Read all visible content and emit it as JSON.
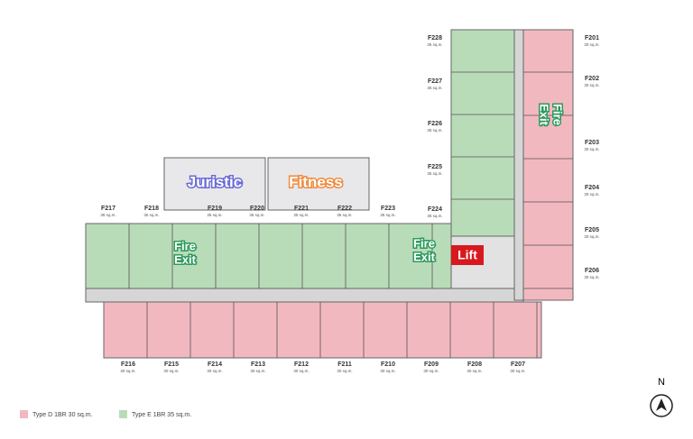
{
  "units": [
    {
      "label": "F201",
      "size": "30 sq.m."
    },
    {
      "label": "F202",
      "size": "30 sq.m."
    },
    {
      "label": "F203",
      "size": "30 sq.m."
    },
    {
      "label": "F204",
      "size": "30 sq.m."
    },
    {
      "label": "F205",
      "size": "30 sq.m."
    },
    {
      "label": "F206",
      "size": "30 sq.m."
    },
    {
      "label": "F207",
      "size": "30 sq.m."
    },
    {
      "label": "F208",
      "size": "30 sq.m."
    },
    {
      "label": "F209",
      "size": "30 sq.m."
    },
    {
      "label": "F210",
      "size": "30 sq.m."
    },
    {
      "label": "F211",
      "size": "30 sq.m."
    },
    {
      "label": "F212",
      "size": "30 sq.m."
    },
    {
      "label": "F213",
      "size": "30 sq.m."
    },
    {
      "label": "F214",
      "size": "30 sq.m."
    },
    {
      "label": "F215",
      "size": "30 sq.m."
    },
    {
      "label": "F216",
      "size": "30 sq.m."
    },
    {
      "label": "F217",
      "size": "35 sq.m."
    },
    {
      "label": "F218",
      "size": "35 sq.m."
    },
    {
      "label": "F219",
      "size": "35 sq.m."
    },
    {
      "label": "F220",
      "size": "35 sq.m."
    },
    {
      "label": "F221",
      "size": "35 sq.m."
    },
    {
      "label": "F222",
      "size": "35 sq.m."
    },
    {
      "label": "F223",
      "size": "35 sq.m."
    },
    {
      "label": "F224",
      "size": "35 sq.m."
    },
    {
      "label": "F225",
      "size": "35 sq.m."
    },
    {
      "label": "F226",
      "size": "35 sq.m."
    },
    {
      "label": "F227",
      "size": "35 sq.m."
    },
    {
      "label": "F228",
      "size": "35 sq.m."
    }
  ],
  "amenities": {
    "juristic": "Juristic",
    "fitness": "Fitness",
    "lift": "Lift",
    "fire_exits": [
      [
        "Fire",
        "Exit"
      ],
      [
        "Fire",
        "Exit"
      ],
      [
        "Fire",
        "Exit"
      ]
    ]
  },
  "legend": [
    {
      "label": "Type D 1BR 30 sq.m.",
      "color": "#f2b8c0"
    },
    {
      "label": "Type E 1BR 35 sq.m.",
      "color": "#b9dcb8"
    }
  ],
  "compass": "N"
}
